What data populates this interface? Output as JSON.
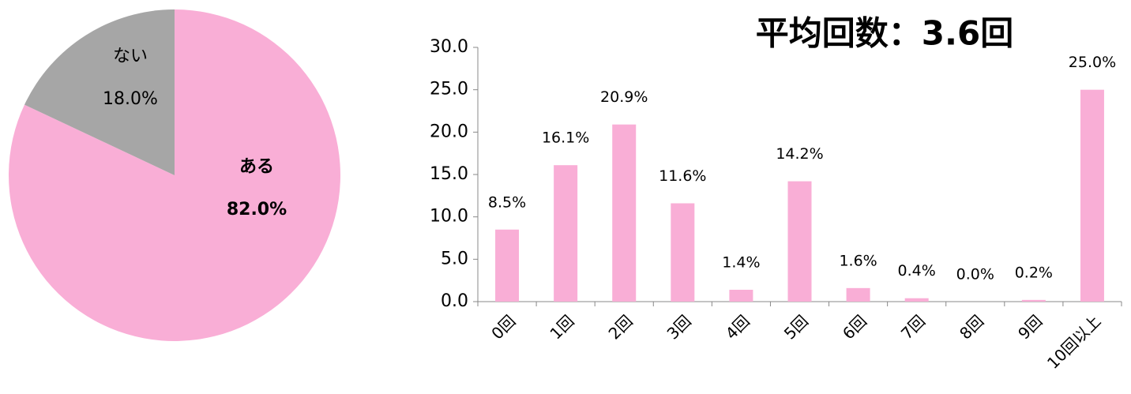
{
  "chart_data": [
    {
      "type": "pie",
      "categories": [
        "ある",
        "ない"
      ],
      "values": [
        82.0,
        18.0
      ],
      "value_labels": [
        "82.0%",
        "18.0%"
      ],
      "colors": [
        "#f9aed6",
        "#a6a6a6"
      ]
    },
    {
      "type": "bar",
      "title": "平均回数：3.6回",
      "categories": [
        "0回",
        "1回",
        "2回",
        "3回",
        "4回",
        "5回",
        "6回",
        "7回",
        "8回",
        "9回",
        "10回以上"
      ],
      "values": [
        8.5,
        16.1,
        20.9,
        11.6,
        1.4,
        14.2,
        1.6,
        0.4,
        0.0,
        0.2,
        25.0
      ],
      "value_labels": [
        "8.5%",
        "16.1%",
        "20.9%",
        "11.6%",
        "1.4%",
        "14.2%",
        "1.6%",
        "0.4%",
        "0.0%",
        "0.2%",
        "25.0%"
      ],
      "color": "#f9aed6",
      "ylim": [
        0,
        30
      ],
      "yticks": [
        {
          "value": 0,
          "label": "0.0"
        },
        {
          "value": 5,
          "label": "5.0"
        },
        {
          "value": 10,
          "label": "10.0"
        },
        {
          "value": 15,
          "label": "15.0"
        },
        {
          "value": 20,
          "label": "20.0"
        },
        {
          "value": 25,
          "label": "25.0"
        },
        {
          "value": 30,
          "label": "30.0"
        }
      ],
      "grid": false
    }
  ]
}
